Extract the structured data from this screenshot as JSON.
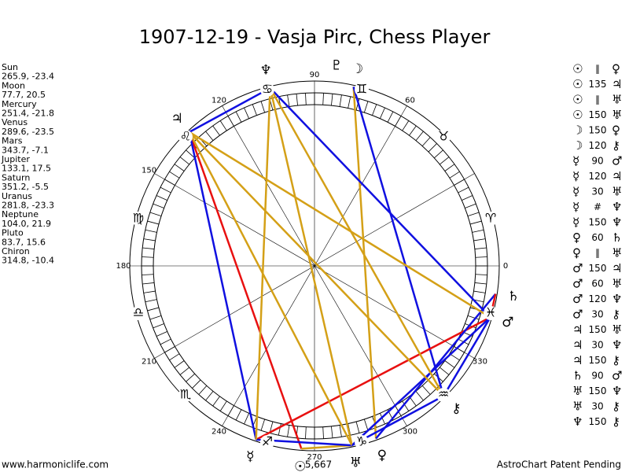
{
  "title": "1907-12-19 - Vasja Pirc, Chess Player",
  "planets": [
    {
      "name": "Sun",
      "glyph": "☉",
      "position": "265.9, -23.4"
    },
    {
      "name": "Moon",
      "glyph": "☽",
      "position": "77.7, 20.5"
    },
    {
      "name": "Mercury",
      "glyph": "☿",
      "position": "251.4, -21.8"
    },
    {
      "name": "Venus",
      "glyph": "♀",
      "position": "289.6, -23.5"
    },
    {
      "name": "Mars",
      "glyph": "♂",
      "position": "343.7, -7.1"
    },
    {
      "name": "Jupiter",
      "glyph": "♃",
      "position": "133.1, 17.5"
    },
    {
      "name": "Saturn",
      "glyph": "♄",
      "position": "351.2, -5.5"
    },
    {
      "name": "Uranus",
      "glyph": "♅",
      "position": "281.8, -23.3"
    },
    {
      "name": "Neptune",
      "glyph": "♆",
      "position": "104.0, 21.9"
    },
    {
      "name": "Pluto",
      "glyph": "♇",
      "position": "83.7, 15.6"
    },
    {
      "name": "Chiron",
      "glyph": "⚷",
      "position": "314.8, -10.4"
    }
  ],
  "signs": [
    "♈",
    "♉",
    "♊",
    "♋",
    "♌",
    "♍",
    "♎",
    "♏",
    "♐",
    "♑",
    "♒",
    "♓"
  ],
  "degree_ticks": [
    0,
    60,
    90,
    120,
    150,
    180,
    210,
    240,
    270,
    300,
    330
  ],
  "sun_note": "5,667",
  "aspects": [
    {
      "from": "☉",
      "label": "∥",
      "to": "♀"
    },
    {
      "from": "☉",
      "label": "135",
      "to": "♃"
    },
    {
      "from": "☉",
      "label": "∥",
      "to": "♅"
    },
    {
      "from": "☉",
      "label": "150",
      "to": "♅"
    },
    {
      "from": "☽",
      "label": "150",
      "to": "♀"
    },
    {
      "from": "☽",
      "label": "120",
      "to": "⚷"
    },
    {
      "from": "☿",
      "label": "90",
      "to": "♂"
    },
    {
      "from": "☿",
      "label": "120",
      "to": "♃"
    },
    {
      "from": "☿",
      "label": "30",
      "to": "♅"
    },
    {
      "from": "☿",
      "label": "#",
      "to": "♆"
    },
    {
      "from": "☿",
      "label": "150",
      "to": "♆"
    },
    {
      "from": "♀",
      "label": "60",
      "to": "♄"
    },
    {
      "from": "♀",
      "label": "∥",
      "to": "♅"
    },
    {
      "from": "♂",
      "label": "150",
      "to": "♃"
    },
    {
      "from": "♂",
      "label": "60",
      "to": "♅"
    },
    {
      "from": "♂",
      "label": "120",
      "to": "♆"
    },
    {
      "from": "♂",
      "label": "30",
      "to": "⚷"
    },
    {
      "from": "♃",
      "label": "150",
      "to": "♅"
    },
    {
      "from": "♃",
      "label": "30",
      "to": "♆"
    },
    {
      "from": "♃",
      "label": "150",
      "to": "⚷"
    },
    {
      "from": "♄",
      "label": "90",
      "to": "♂"
    },
    {
      "from": "♅",
      "label": "150",
      "to": "♆"
    },
    {
      "from": "♅",
      "label": "30",
      "to": "⚷"
    },
    {
      "from": "♆",
      "label": "150",
      "to": "⚷"
    }
  ],
  "line_colors": {
    "150": "#d4a017",
    "90": "#e81010",
    "135": "#e81010",
    "120": "#1010e0",
    "60": "#1010e0",
    "30": "#1010e0"
  },
  "footer": {
    "left": "www.harmoniclife.com",
    "right": "AstroChart Patent Pending"
  }
}
